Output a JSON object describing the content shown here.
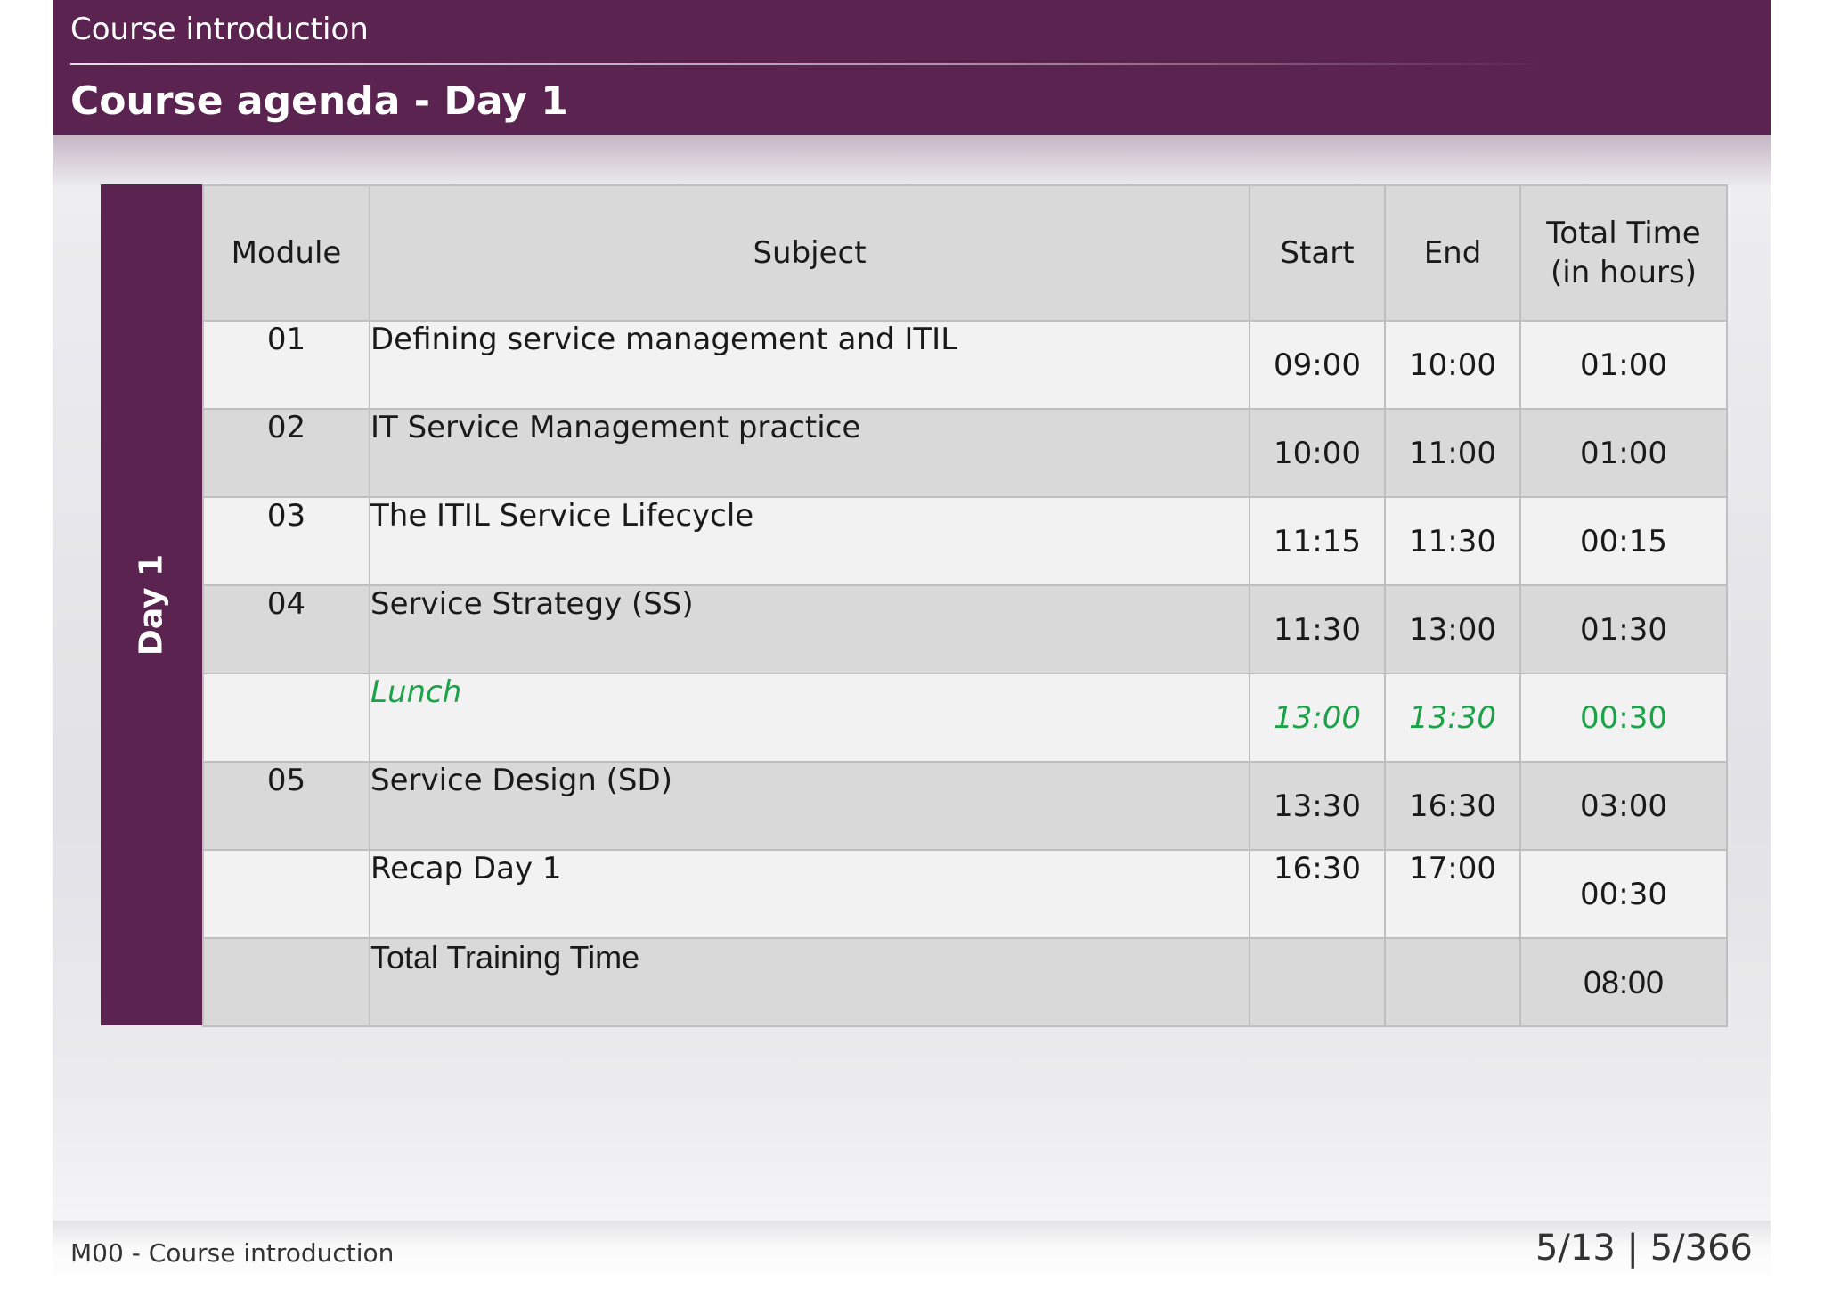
{
  "header": {
    "section_title": "Course introduction",
    "page_title": "Course agenda - Day 1"
  },
  "day_label": "Day 1",
  "table": {
    "columns": {
      "module": "Module",
      "subject": "Subject",
      "start": "Start",
      "end": "End",
      "total_line1": "Total Time",
      "total_line2": "(in hours)"
    },
    "rows": [
      {
        "module": "01",
        "subject": "Defining service management and ITIL",
        "start": "09:00",
        "end": "10:00",
        "total": "01:00"
      },
      {
        "module": "02",
        "subject": "IT Service Management practice",
        "start": "10:00",
        "end": "11:00",
        "total": "01:00"
      },
      {
        "module": "03",
        "subject": "The ITIL Service Lifecycle",
        "start": "11:15",
        "end": "11:30",
        "total": "00:15"
      },
      {
        "module": "04",
        "subject": "Service Strategy (SS)",
        "start": "11:30",
        "end": "13:00",
        "total": "01:30"
      },
      {
        "module": "",
        "subject": "Lunch",
        "start": "13:00",
        "end": "13:30",
        "total": "00:30"
      },
      {
        "module": "05",
        "subject": "Service Design (SD)",
        "start": "13:30",
        "end": "16:30",
        "total": "03:00"
      },
      {
        "module": "",
        "subject": "Recap Day 1",
        "start": "16:30",
        "end": "17:00",
        "total": "00:30"
      },
      {
        "module": "",
        "subject": "Total Training Time",
        "start": "",
        "end": "",
        "total": "08:00"
      }
    ]
  },
  "footer": {
    "left": "M00 - Course introduction",
    "right": "5/13 | 5/366"
  },
  "colors": {
    "brand": "#5b2450",
    "lunch": "#1da24a"
  }
}
